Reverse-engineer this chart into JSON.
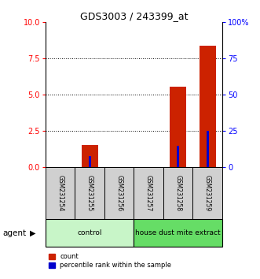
{
  "title": "GDS3003 / 243399_at",
  "samples": [
    "GSM231254",
    "GSM231255",
    "GSM231256",
    "GSM231257",
    "GSM231258",
    "GSM231259"
  ],
  "count_values": [
    0,
    1.55,
    0,
    0,
    5.55,
    8.4
  ],
  "percentile_values": [
    0,
    8,
    0,
    0,
    15,
    25
  ],
  "ylim_left": [
    0,
    10
  ],
  "ylim_right": [
    0,
    100
  ],
  "yticks_left": [
    0,
    2.5,
    5,
    7.5,
    10
  ],
  "yticks_right": [
    0,
    25,
    50,
    75,
    100
  ],
  "count_color": "#CC2200",
  "percentile_color": "#0000CC",
  "legend_count": "count",
  "legend_percentile": "percentile rank within the sample",
  "group_defs": [
    {
      "start": 0,
      "end": 2,
      "label": "control",
      "color": "#c8f5c8"
    },
    {
      "start": 3,
      "end": 5,
      "label": "house dust mite extract",
      "color": "#66dd66"
    }
  ],
  "agent_label": "agent",
  "sample_box_color": "#d0d0d0"
}
